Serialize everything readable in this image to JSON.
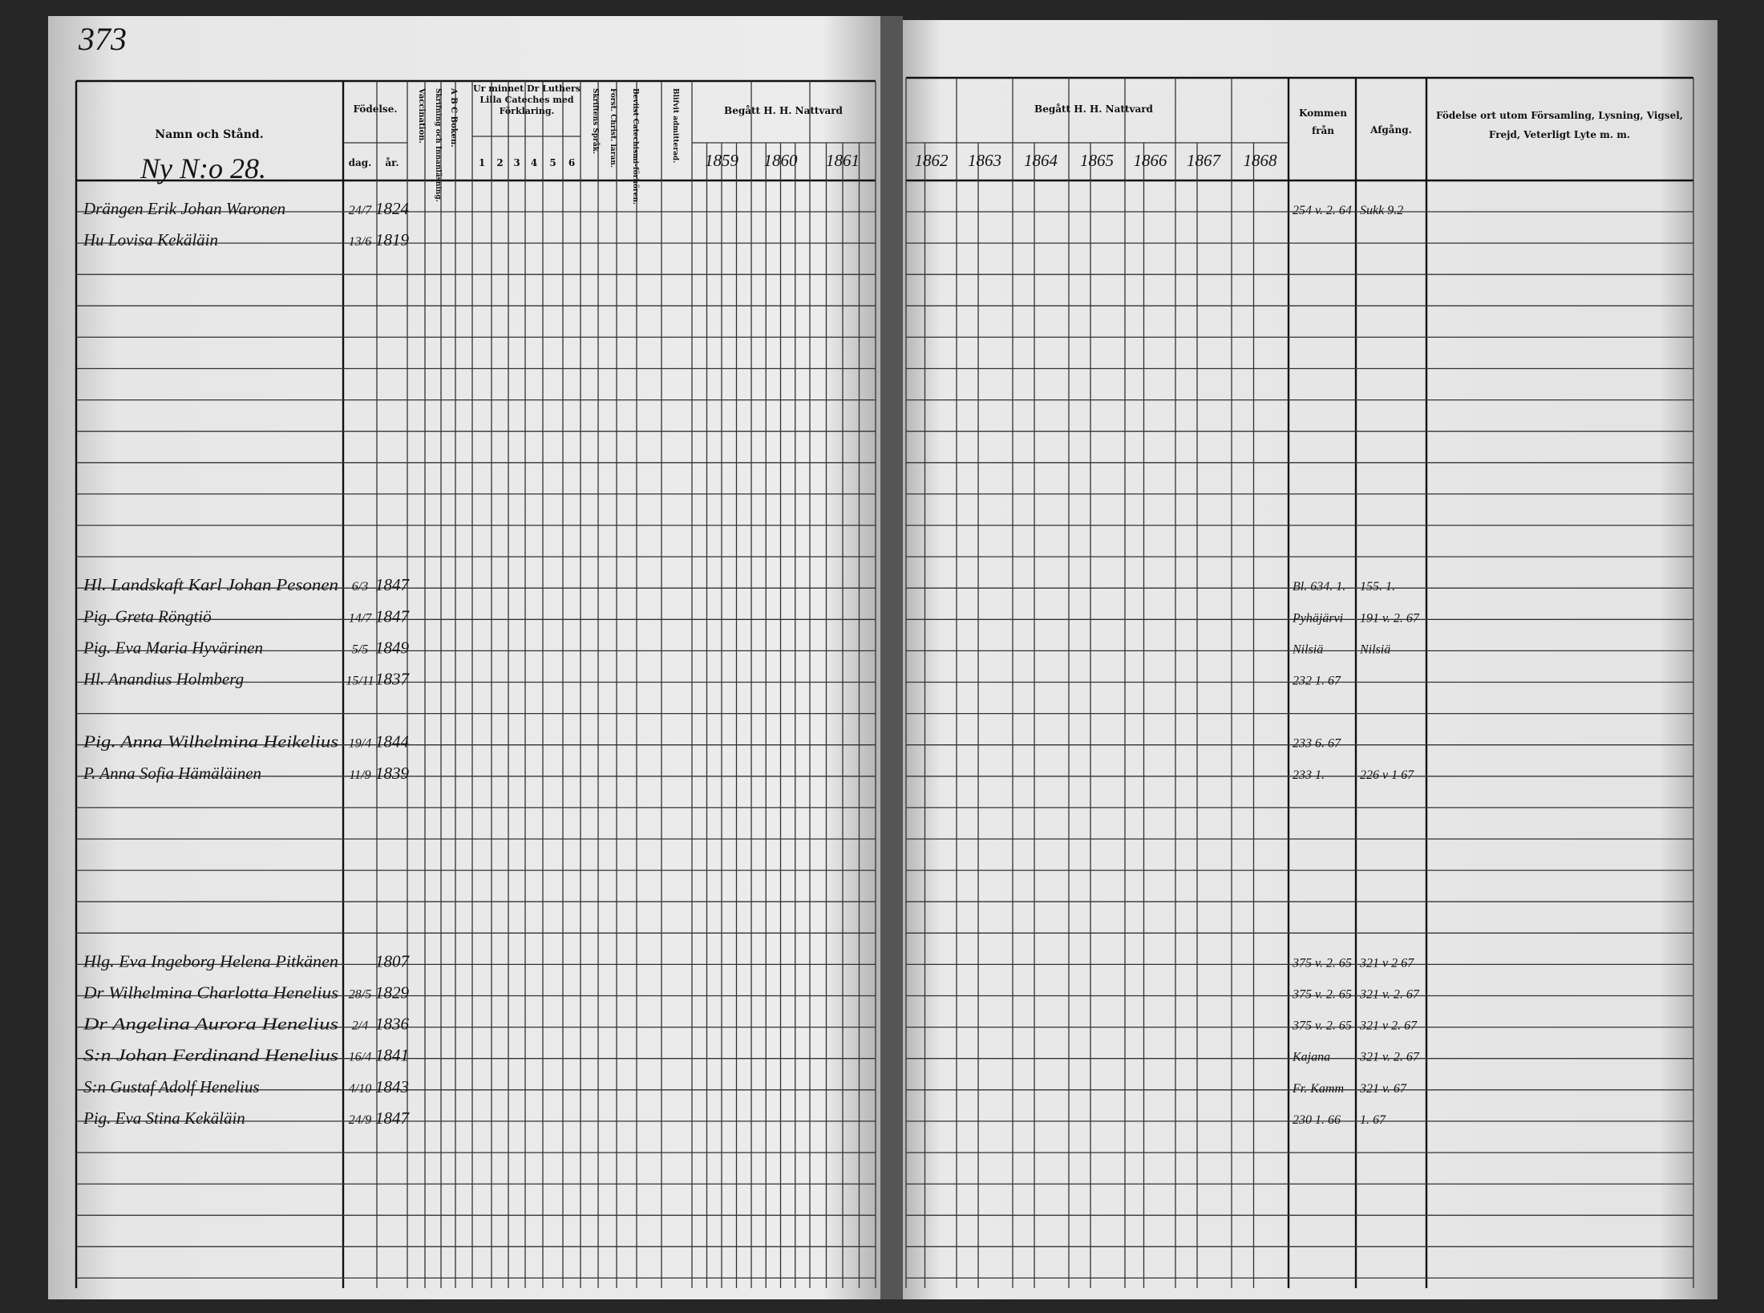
{
  "page_number": "373",
  "heading": "Ny N:o 28.",
  "left_headers": {
    "name": "Namn och Stånd.",
    "birth": "Födelse.",
    "day": "dag.",
    "year": "år.",
    "vaccination": "Vaccination.",
    "reading": "Skrifning och Innanläsning.",
    "abc": "A B C Boken.",
    "catechism": "Ur minnet Dr Luthers Lilla Cateches med Förklaring.",
    "catechism_parts": [
      "1",
      "2",
      "3",
      "4",
      "5",
      "6"
    ],
    "scripture": "Skriftens Språk.",
    "christ": "Först. Christ. läran.",
    "hearings": "Beviist Catechismi-förhören.",
    "admitted": "Blifvit admitterad.",
    "communion": "Begått H. H. Nattvard",
    "years": [
      "1859",
      "1860",
      "1861"
    ]
  },
  "right_headers": {
    "communion": "Begått H. H. Nattvard",
    "years": [
      "1862",
      "1863",
      "1864",
      "1865",
      "1866",
      "1867",
      "1868"
    ],
    "from": "Kommen från",
    "departure": "Afgång.",
    "remarks": "Födelse ort utom Församling, Lysning, Vigsel, Frejd, Veterligt Lyte m. m."
  },
  "entries": [
    {
      "name": "Drängen Erik Johan Waronen",
      "day": "24/7",
      "year": "1824",
      "from": "254 v. 2. 64",
      "departure": "Sukk 9.2"
    },
    {
      "name": "Hu Lovisa Kekäläin",
      "day": "13/6",
      "year": "1819"
    },
    {
      "name": "Hl. Landskaft Karl Johan Pesonen",
      "day": "6/3",
      "year": "1847",
      "from": "Bl. 634. 1.",
      "departure": "155. 1."
    },
    {
      "name": "Pig. Greta Röngtiö",
      "day": "14/7",
      "year": "1847",
      "from": "Pyhäjärvi",
      "departure": "191 v. 2. 67"
    },
    {
      "name": "Pig. Eva Maria Hyvärinen",
      "day": "5/5",
      "year": "1849",
      "from": "Nilsiä",
      "departure": "Nilsiä"
    },
    {
      "name": "Hl. Anandius Holmberg",
      "day": "15/11",
      "year": "1837",
      "from": "232 1. 67"
    },
    {
      "name": "Pig. Anna Wilhelmina Heikelius",
      "day": "19/4",
      "year": "1844",
      "from": "233 6. 67"
    },
    {
      "name": "P. Anna Sofia Hämäläinen",
      "day": "11/9",
      "year": "1839",
      "from": "233 1.",
      "departure": "226 v 1 67"
    },
    {
      "name": "Hlg. Eva Ingeborg Helena Pitkänen",
      "year": "1807",
      "from": "375 v. 2. 65",
      "departure": "321 v 2 67"
    },
    {
      "name": "Dr Wilhelmina Charlotta Henelius",
      "day": "28/5",
      "year": "1829",
      "from": "375 v. 2. 65",
      "departure": "321 v. 2. 67"
    },
    {
      "name": "Dr Angelina Aurora Henelius",
      "day": "2/4",
      "year": "1836",
      "from": "375 v. 2. 65",
      "departure": "321 v 2. 67"
    },
    {
      "name": "S:n Johan Ferdinand Henelius",
      "day": "16/4",
      "year": "1841",
      "from": "Kajana",
      "departure": "321 v. 2. 67"
    },
    {
      "name": "S:n Gustaf Adolf Henelius",
      "day": "4/10",
      "year": "1843",
      "from": "Fr. Kamm",
      "departure": "321 v. 67"
    },
    {
      "name": "Pig. Eva Stina Kekäläin",
      "day": "24/9",
      "year": "1847",
      "from": "230 1. 66",
      "departure": "1. 67"
    }
  ]
}
